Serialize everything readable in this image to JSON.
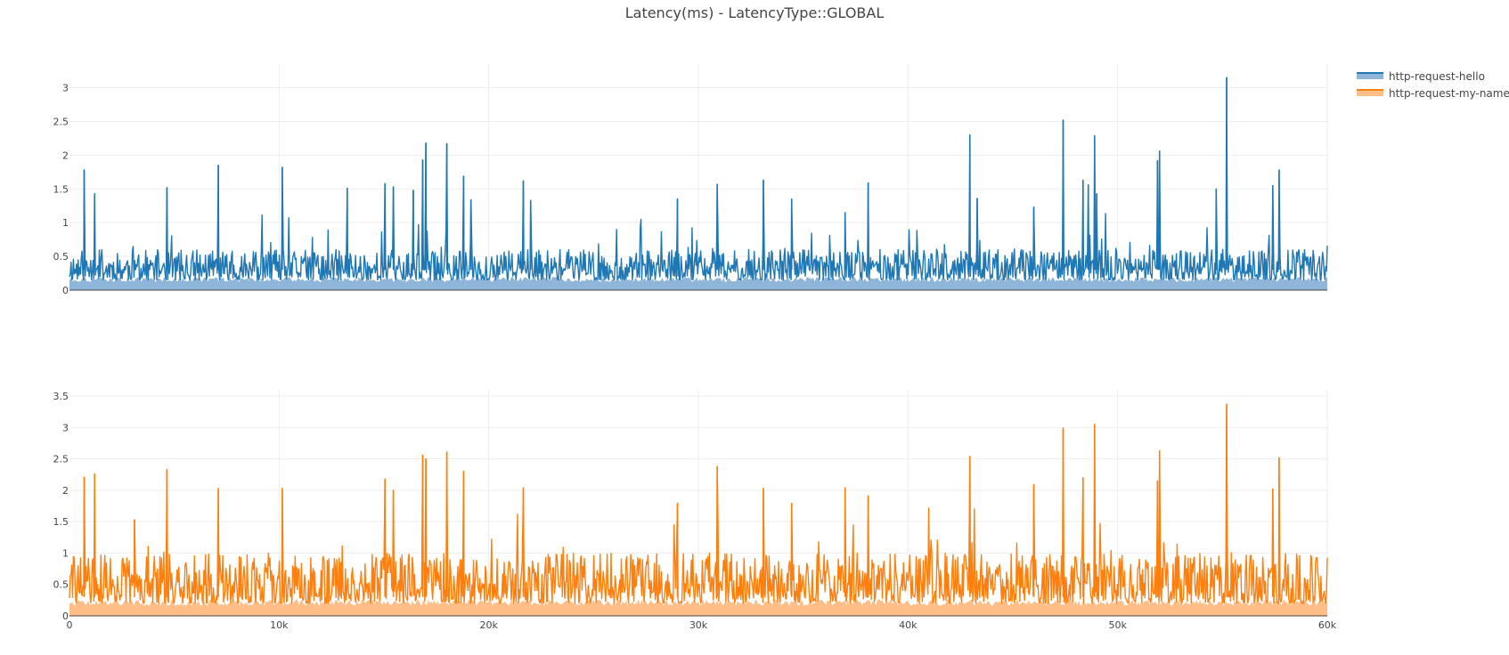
{
  "colors": {
    "hello_line": "#1f77b4",
    "hello_fill": "#8fb6d9",
    "myname_line": "#ff7f0e",
    "myname_fill": "#ffbe87"
  },
  "chart_data": {
    "type": "area",
    "title": "Latency(ms) - LatencyType::GLOBAL",
    "xlabel": "",
    "ylabel": "",
    "x_range": [
      0,
      60000
    ],
    "x_ticks": [
      0,
      10000,
      20000,
      30000,
      40000,
      50000,
      60000
    ],
    "x_tick_labels": [
      "0",
      "10k",
      "20k",
      "30k",
      "40k",
      "50k",
      "60k"
    ],
    "legend_position": "top-right",
    "series": [
      {
        "name": "http-request-hello",
        "subplot": "top",
        "y_range": [
          0,
          3.35
        ],
        "y_ticks": [
          0,
          0.5,
          1,
          1.5,
          2,
          2.5,
          3
        ],
        "y_tick_labels": [
          "0",
          "0.5",
          "1",
          "1.5",
          "2",
          "2.5",
          "3"
        ],
        "baseline_typical": [
          0.15,
          0.6
        ],
        "spikes": [
          {
            "x": 700,
            "y": 1.78
          },
          {
            "x": 1200,
            "y": 1.43
          },
          {
            "x": 4650,
            "y": 1.52
          },
          {
            "x": 7100,
            "y": 1.85
          },
          {
            "x": 10150,
            "y": 1.82
          },
          {
            "x": 13250,
            "y": 1.51
          },
          {
            "x": 15050,
            "y": 1.58
          },
          {
            "x": 15450,
            "y": 1.53
          },
          {
            "x": 16400,
            "y": 1.48
          },
          {
            "x": 16850,
            "y": 1.93
          },
          {
            "x": 17000,
            "y": 2.18
          },
          {
            "x": 18000,
            "y": 2.17
          },
          {
            "x": 18800,
            "y": 1.69
          },
          {
            "x": 19150,
            "y": 1.34
          },
          {
            "x": 21650,
            "y": 1.62
          },
          {
            "x": 22000,
            "y": 1.33
          },
          {
            "x": 29000,
            "y": 1.35
          },
          {
            "x": 30900,
            "y": 1.57
          },
          {
            "x": 33100,
            "y": 1.63
          },
          {
            "x": 34450,
            "y": 1.35
          },
          {
            "x": 37000,
            "y": 1.15
          },
          {
            "x": 38100,
            "y": 1.59
          },
          {
            "x": 42950,
            "y": 2.3
          },
          {
            "x": 43300,
            "y": 1.36
          },
          {
            "x": 46000,
            "y": 1.23
          },
          {
            "x": 47400,
            "y": 2.52
          },
          {
            "x": 48350,
            "y": 1.63
          },
          {
            "x": 48600,
            "y": 1.56
          },
          {
            "x": 48900,
            "y": 2.29
          },
          {
            "x": 49000,
            "y": 1.43
          },
          {
            "x": 51900,
            "y": 1.92
          },
          {
            "x": 52000,
            "y": 2.06
          },
          {
            "x": 54700,
            "y": 1.5
          },
          {
            "x": 55200,
            "y": 3.15
          },
          {
            "x": 57400,
            "y": 1.55
          },
          {
            "x": 57700,
            "y": 1.78
          }
        ]
      },
      {
        "name": "http-request-my-name",
        "subplot": "bottom",
        "y_range": [
          0,
          3.6
        ],
        "y_ticks": [
          0,
          0.5,
          1,
          1.5,
          2,
          2.5,
          3,
          3.5
        ],
        "y_tick_labels": [
          "0",
          "0.5",
          "1",
          "1.5",
          "2",
          "2.5",
          "3",
          "3.5"
        ],
        "baseline_typical": [
          0.2,
          1.0
        ],
        "spikes": [
          {
            "x": 700,
            "y": 2.21
          },
          {
            "x": 1200,
            "y": 2.26
          },
          {
            "x": 3100,
            "y": 1.53
          },
          {
            "x": 4650,
            "y": 2.33
          },
          {
            "x": 7100,
            "y": 2.03
          },
          {
            "x": 10150,
            "y": 2.03
          },
          {
            "x": 15050,
            "y": 2.18
          },
          {
            "x": 15450,
            "y": 2.0
          },
          {
            "x": 16850,
            "y": 2.56
          },
          {
            "x": 17000,
            "y": 2.5
          },
          {
            "x": 18000,
            "y": 2.61
          },
          {
            "x": 18800,
            "y": 2.3
          },
          {
            "x": 21650,
            "y": 2.04
          },
          {
            "x": 29000,
            "y": 1.79
          },
          {
            "x": 30900,
            "y": 2.38
          },
          {
            "x": 33100,
            "y": 2.03
          },
          {
            "x": 34450,
            "y": 1.79
          },
          {
            "x": 37000,
            "y": 2.04
          },
          {
            "x": 38100,
            "y": 1.91
          },
          {
            "x": 42950,
            "y": 2.54
          },
          {
            "x": 46000,
            "y": 2.09
          },
          {
            "x": 47400,
            "y": 2.99
          },
          {
            "x": 48350,
            "y": 2.2
          },
          {
            "x": 48900,
            "y": 3.05
          },
          {
            "x": 51900,
            "y": 2.15
          },
          {
            "x": 52000,
            "y": 2.63
          },
          {
            "x": 55200,
            "y": 3.37
          },
          {
            "x": 57400,
            "y": 2.02
          },
          {
            "x": 57700,
            "y": 2.52
          }
        ]
      }
    ]
  }
}
